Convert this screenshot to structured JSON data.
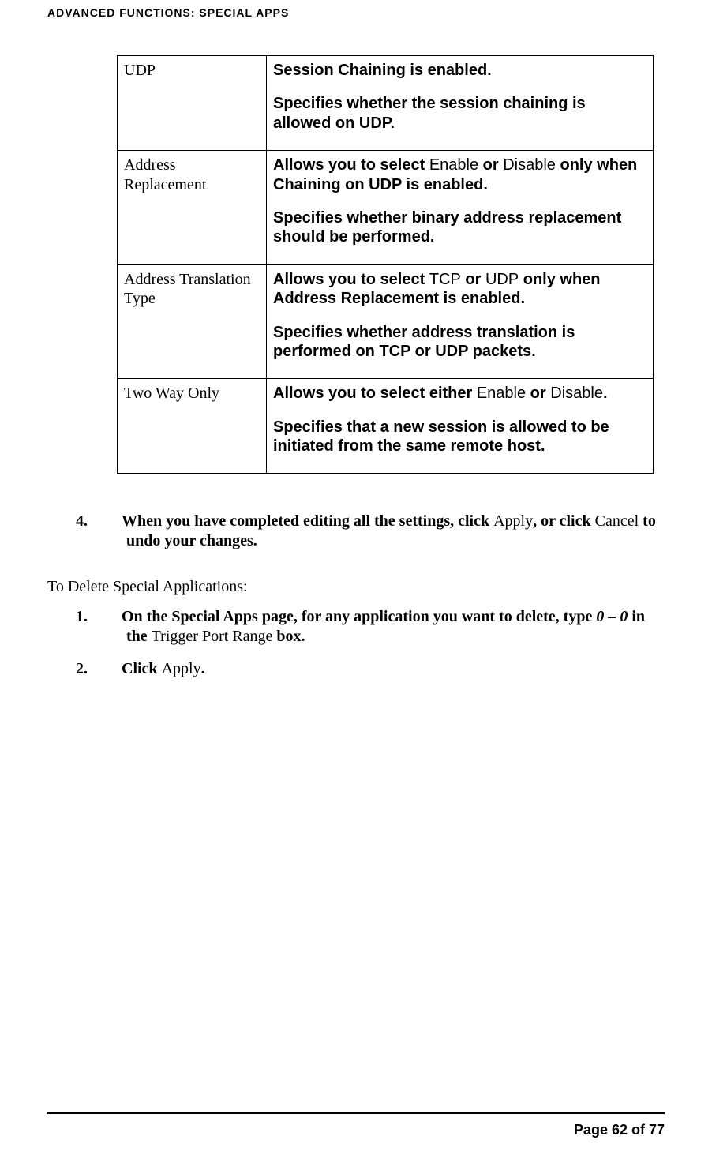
{
  "header": "ADVANCED FUNCTIONS: SPECIAL APPS",
  "rows": [
    {
      "left": "UDP",
      "right": [
        [
          {
            "t": "Session Chaining is enabled.",
            "b": true
          }
        ],
        [
          {
            "t": "Specifies whether the session chaining is allowed on UDP.",
            "b": true
          }
        ]
      ]
    },
    {
      "left": "Address Replacement",
      "right": [
        [
          {
            "t": "Allows you to select ",
            "b": true
          },
          {
            "t": "Enable",
            "b": false
          },
          {
            "t": " or ",
            "b": true
          },
          {
            "t": "Disable",
            "b": false
          },
          {
            "t": " only when Chaining on UDP is enabled.",
            "b": true
          }
        ],
        [
          {
            "t": "Specifies whether binary address replacement should be performed.",
            "b": true
          }
        ]
      ]
    },
    {
      "left": "Address Translation Type",
      "right": [
        [
          {
            "t": "Allows you to select ",
            "b": true
          },
          {
            "t": "TCP",
            "b": false
          },
          {
            "t": " or ",
            "b": true
          },
          {
            "t": "UDP",
            "b": false
          },
          {
            "t": " only when Address Replacement is enabled.",
            "b": true
          }
        ],
        [
          {
            "t": "Specifies whether address translation is performed on TCP or UDP packets.",
            "b": true
          }
        ]
      ]
    },
    {
      "left": "Two Way Only",
      "right": [
        [
          {
            "t": "Allows you to select either ",
            "b": true
          },
          {
            "t": "Enable",
            "b": false
          },
          {
            "t": " or ",
            "b": true
          },
          {
            "t": "Disable",
            "b": false
          },
          {
            "t": ".",
            "b": true
          }
        ],
        [
          {
            "t": "Specifies that a new session is allowed to be initiated from the same remote host.",
            "b": true
          }
        ]
      ]
    }
  ],
  "step4": {
    "num": "4.",
    "parts": [
      {
        "t": "When you have completed editing all the settings, click ",
        "b": true
      },
      {
        "t": "Apply",
        "b": false
      },
      {
        "t": ", or click ",
        "b": true
      },
      {
        "t": "Cancel",
        "b": false,
        "br": true
      },
      {
        "t": " to undo your changes.",
        "b": true
      }
    ]
  },
  "subhead": "To Delete Special Applications:",
  "del1": {
    "num": "1.",
    "parts": [
      {
        "t": "On the Special Apps page, for any application you want to delete, type ",
        "b": true
      },
      {
        "t": "0 – 0",
        "b": true,
        "i": true,
        "br": true
      },
      {
        "t": " in the ",
        "b": true
      },
      {
        "t": "Trigger Port Range",
        "b": false
      },
      {
        "t": " box.",
        "b": true
      }
    ]
  },
  "del2": {
    "num": "2.",
    "parts": [
      {
        "t": "Click ",
        "b": true
      },
      {
        "t": "Apply",
        "b": false
      },
      {
        "t": ".",
        "b": true
      }
    ]
  },
  "footer": "Page 62 of 77"
}
